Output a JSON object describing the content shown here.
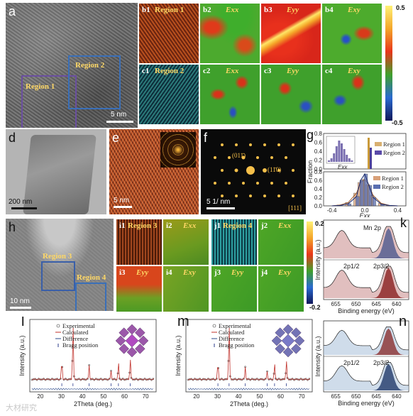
{
  "panels": {
    "a": {
      "label": "a",
      "regions": [
        "Region 1",
        "Region 2"
      ],
      "scalebar": "5 nm"
    },
    "b": {
      "labels": [
        "b1",
        "b2",
        "b3",
        "b4"
      ],
      "region": "Region 1",
      "components": [
        "Exx",
        "Eyy",
        "Exy"
      ]
    },
    "c": {
      "labels": [
        "c1",
        "c2",
        "c3",
        "c4"
      ],
      "region": "Region 2",
      "components": [
        "Exx",
        "Eyy",
        "Exy"
      ]
    },
    "colorbar_top": {
      "max": "0.5",
      "min": "-0.5"
    },
    "d": {
      "label": "d",
      "scalebar": "200 nm"
    },
    "e": {
      "label": "e",
      "scalebar": "5 nm"
    },
    "f": {
      "label": "f",
      "scalebar": "5 1/ nm",
      "annotations": [
        "(011̄)",
        "(11̄0)",
        "[111]"
      ]
    },
    "g": {
      "label": "g"
    },
    "h": {
      "label": "h",
      "regions": [
        "Region 3",
        "Region 4"
      ],
      "scalebar": "10 nm"
    },
    "i": {
      "labels": [
        "i1",
        "i2",
        "i3",
        "i4"
      ],
      "region": "Region 3",
      "components": [
        "Exx",
        "Eyy",
        "Exy"
      ]
    },
    "j": {
      "labels": [
        "j1",
        "j2",
        "j3",
        "j4"
      ],
      "region": "Region 4",
      "components": [
        "Exx",
        "Eyy",
        "Exy"
      ]
    },
    "colorbar_mid": {
      "max": "0.2",
      "min": "-0.2"
    },
    "k": {
      "label": "k",
      "title": "Mn 2p",
      "peaks": [
        "2p1/2",
        "2p3/2"
      ]
    },
    "l": {
      "label": "l"
    },
    "m": {
      "label": "m"
    },
    "n": {
      "label": "n",
      "peaks": [
        "2p1/2",
        "2p3/2"
      ]
    }
  },
  "chart_data": [
    {
      "type": "area",
      "id": "g",
      "ylabel": "Fraction",
      "xlabel": "Exx",
      "inset_xlabel": "Exx",
      "legend": [
        "Region 1",
        "Region 2"
      ],
      "upper_ylim": [
        0,
        0.8
      ],
      "upper_yticks": [
        "0.8",
        "0.6",
        "0.4",
        "0.2",
        "0.0"
      ],
      "lower_yticks": [
        "0.8",
        "0.6",
        "0.4",
        "0.2",
        "0.0"
      ],
      "xticks": [
        "-0.4",
        "0.0",
        "0.4"
      ],
      "lower_x": [
        -0.4,
        -0.3,
        -0.2,
        -0.1,
        -0.05,
        0,
        0.05,
        0.1,
        0.2,
        0.3,
        0.4
      ],
      "series": [
        {
          "name": "Region 1",
          "values": [
            0.0,
            0.02,
            0.08,
            0.3,
            0.55,
            0.62,
            0.5,
            0.25,
            0.06,
            0.01,
            0.0
          ]
        },
        {
          "name": "Region 2",
          "values": [
            0.0,
            0.01,
            0.05,
            0.22,
            0.6,
            0.75,
            0.48,
            0.2,
            0.04,
            0.01,
            0.0
          ]
        }
      ]
    },
    {
      "type": "line",
      "id": "k",
      "xlabel": "Binding energy (eV)",
      "ylabel": "Intensity (a.u.)",
      "xticks": [
        "655",
        "650",
        "645",
        "640"
      ],
      "title": "Mn 2p"
    },
    {
      "type": "line",
      "id": "l",
      "xlabel": "2Theta (deg.)",
      "ylabel": "Intensity (a.u.)",
      "xticks": [
        "20",
        "30",
        "40",
        "50",
        "60",
        "70"
      ],
      "legend": [
        "Experimental",
        "Calculated",
        "Difference",
        "Bragg position"
      ],
      "peaks_x": [
        30.2,
        35.5,
        43.2,
        53.6,
        57.1,
        62.7
      ],
      "peaks_y": [
        0.35,
        1.0,
        0.25,
        0.15,
        0.3,
        0.38
      ]
    },
    {
      "type": "line",
      "id": "m",
      "xlabel": "2Theta (deg.)",
      "ylabel": "Intensity (a.u.)",
      "xticks": [
        "20",
        "30",
        "40",
        "50",
        "60",
        "70"
      ],
      "legend": [
        "Experimental",
        "Calculated",
        "Difference",
        "Bragg position"
      ],
      "peaks_x": [
        30.2,
        35.5,
        43.2,
        53.6,
        57.1,
        62.7
      ],
      "peaks_y": [
        0.32,
        1.0,
        0.22,
        0.14,
        0.28,
        0.35
      ]
    },
    {
      "type": "line",
      "id": "n",
      "xlabel": "Binding energy (eV)",
      "ylabel": "Intensity (a.u.)",
      "xticks": [
        "655",
        "650",
        "645",
        "640"
      ]
    }
  ],
  "watermark": "大材研究"
}
